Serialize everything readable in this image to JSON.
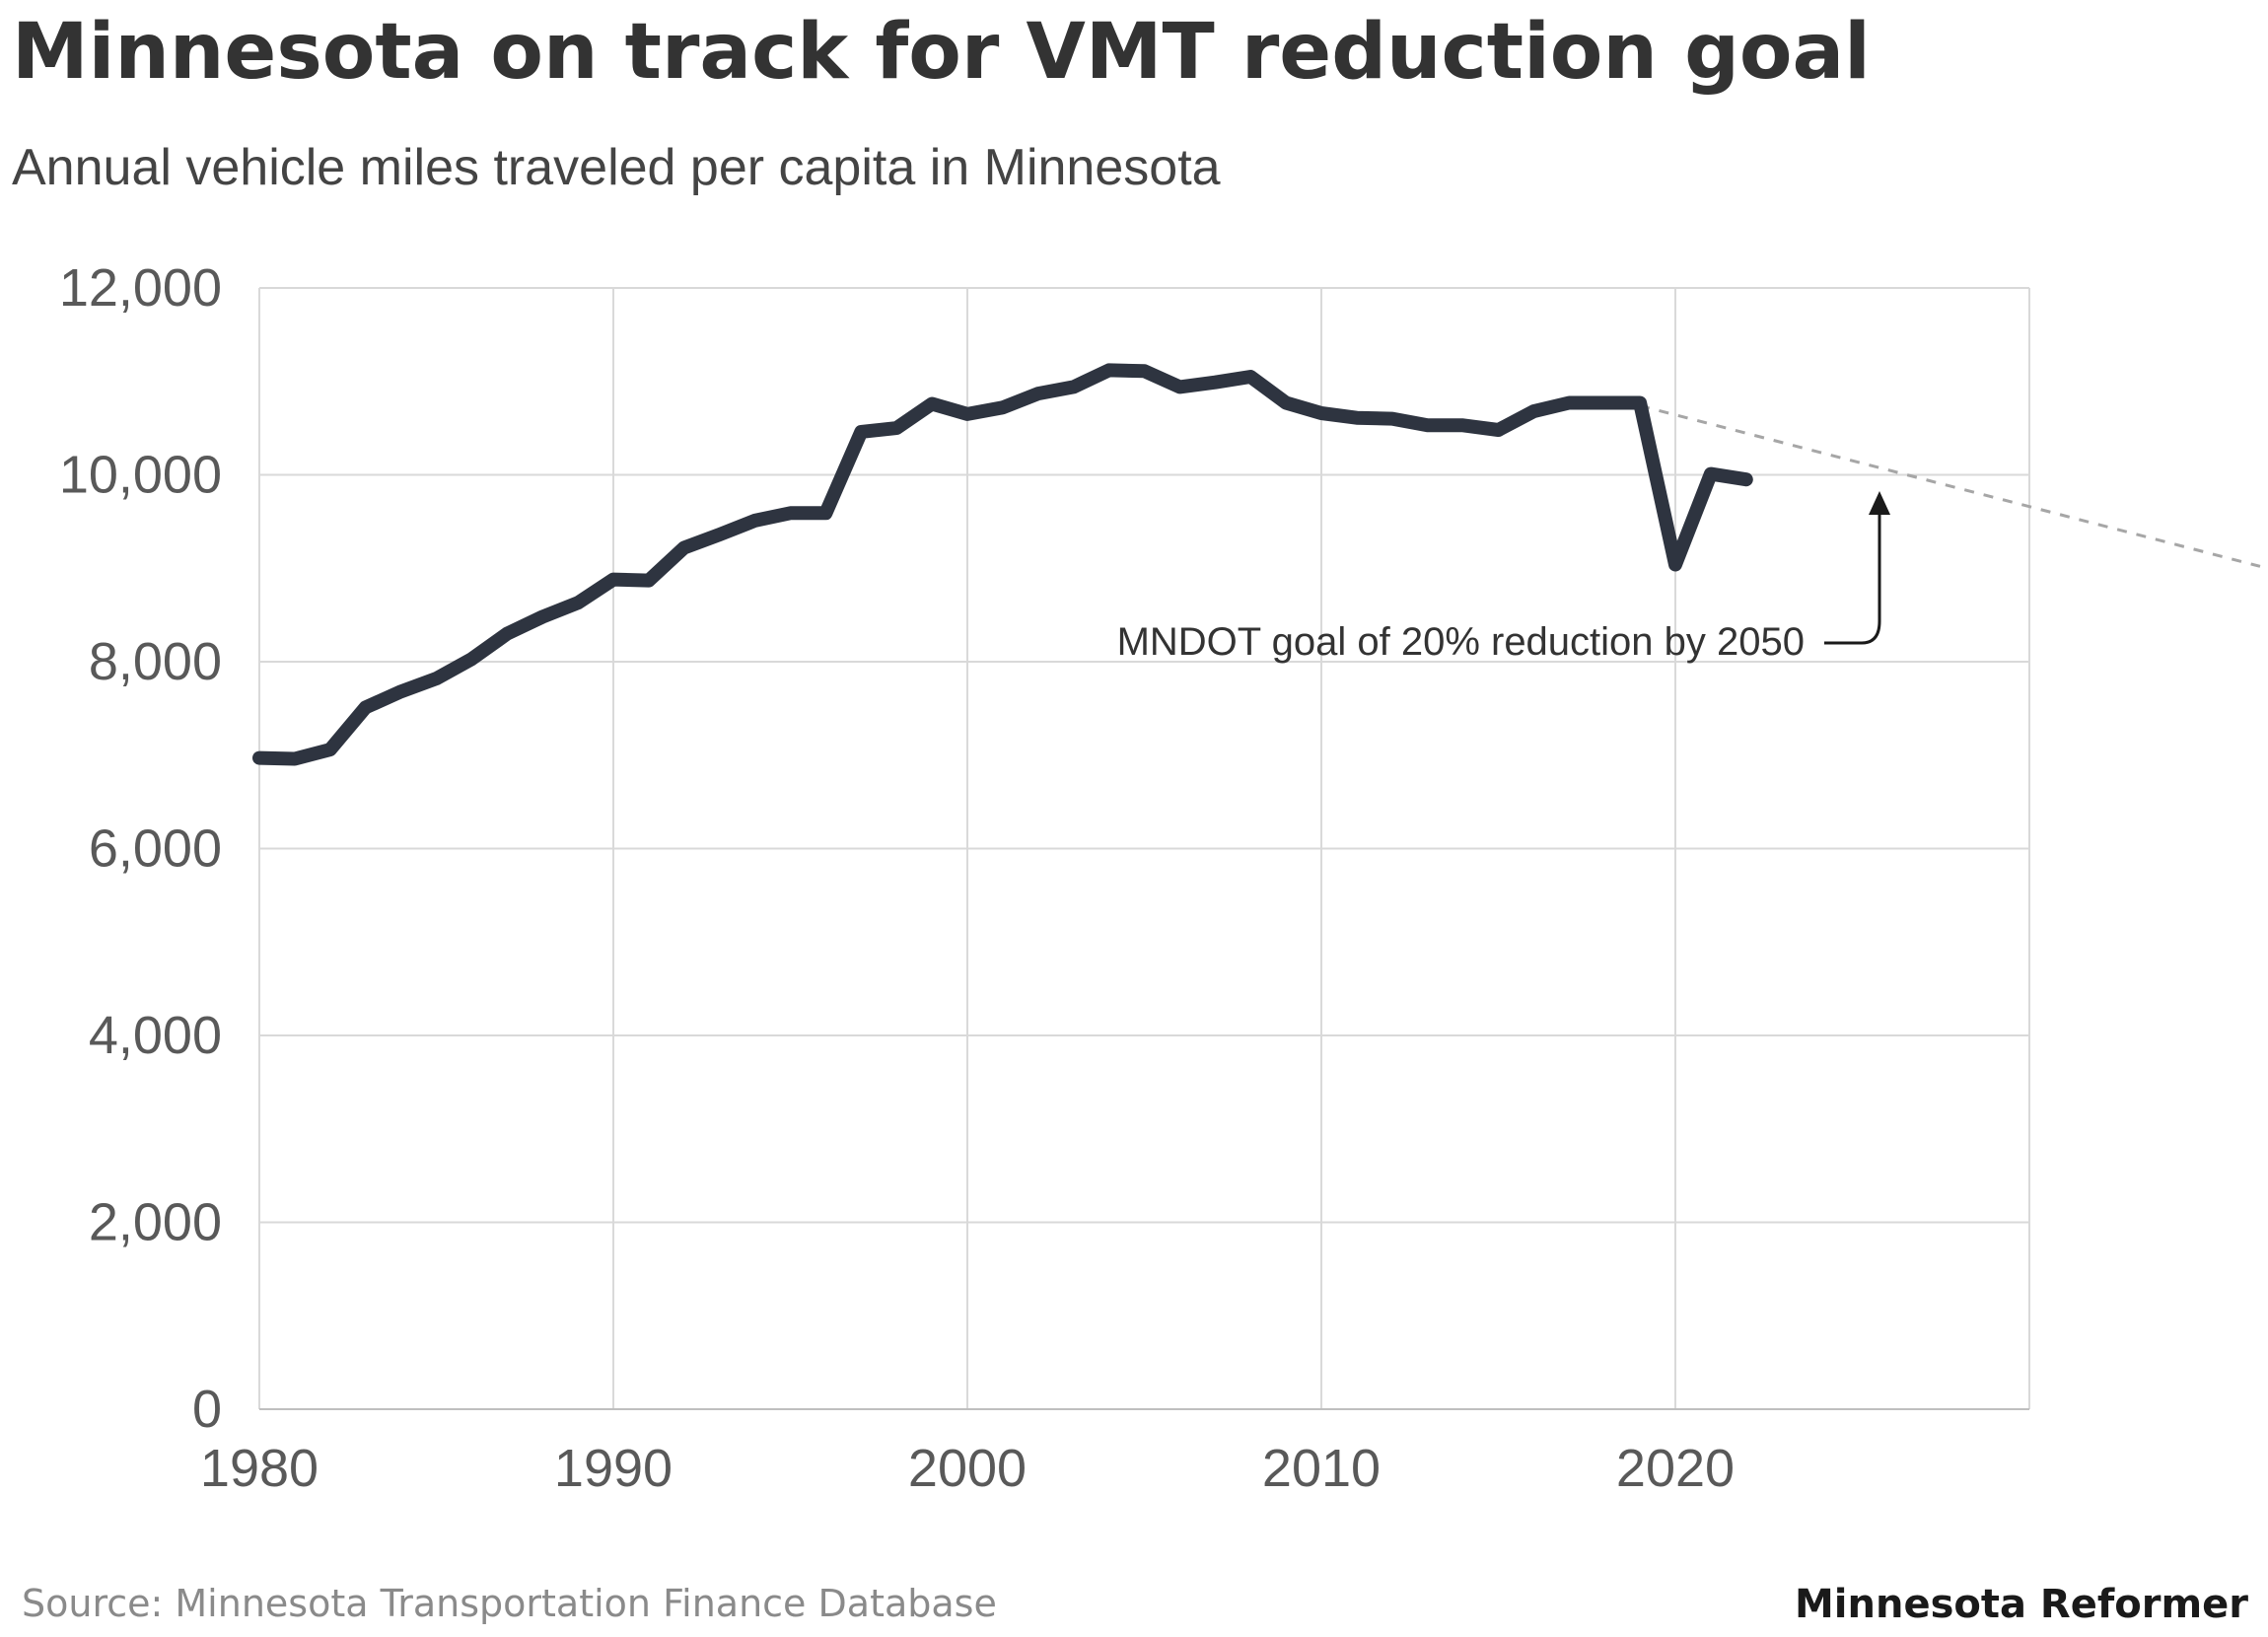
{
  "header": {
    "title": "Minnesota on track for VMT reduction goal",
    "subtitle": "Annual vehicle miles traveled per capita in Minnesota"
  },
  "footer": {
    "source": "Source: Minnesota Transportation Finance Database",
    "brand": "Minnesota Reformer"
  },
  "annotation": {
    "text": "MNDOT goal of 20% reduction by 2050"
  },
  "colors": {
    "line": "#2e3440",
    "grid": "#d9d9d9",
    "goal": "#a6a6a6",
    "tick_text": "#595959"
  },
  "chart_data": {
    "type": "line",
    "title": "Minnesota on track for VMT reduction goal",
    "subtitle": "Annual vehicle miles traveled per capita in Minnesota",
    "xlim": [
      1980,
      2030
    ],
    "ylim": [
      0,
      12000
    ],
    "x_ticks": [
      1980,
      1990,
      2000,
      2010,
      2020
    ],
    "x_tick_labels": [
      "1980",
      "1990",
      "2000",
      "2010",
      "2020"
    ],
    "y_ticks": [
      0,
      2000,
      4000,
      6000,
      8000,
      10000,
      12000
    ],
    "y_tick_labels": [
      "0",
      "2,000",
      "4,000",
      "6,000",
      "8,000",
      "10,000",
      "12,000"
    ],
    "grid": true,
    "series": [
      {
        "x": [
          1980,
          1981,
          1982,
          1983,
          1984,
          1985,
          1986,
          1987,
          1988,
          1989,
          1990,
          1991,
          1992,
          1993,
          1994,
          1995,
          1996,
          1997,
          1998,
          1999,
          2000,
          2001,
          2002,
          2003,
          2004,
          2005,
          2006,
          2007,
          2008,
          2009,
          2010,
          2011,
          2012,
          2013,
          2014,
          2015,
          2016,
          2017,
          2018,
          2019,
          2020,
          2021,
          2022
        ],
        "values": [
          6970,
          6960,
          7060,
          7510,
          7680,
          7820,
          8030,
          8300,
          8480,
          8630,
          8880,
          8870,
          9220,
          9360,
          9510,
          9590,
          9590,
          10460,
          10500,
          10760,
          10650,
          10720,
          10870,
          10940,
          11120,
          11110,
          10940,
          10990,
          11050,
          10770,
          10660,
          10610,
          10600,
          10530,
          10530,
          10480,
          10680,
          10770,
          10770,
          10770,
          9040,
          10010,
          9950
        ]
      },
      {
        "name": "MNDOT goal of 20% reduction by 2050",
        "style": "dashed",
        "x": [
          2019,
          2030
        ],
        "values": [
          10740,
          9660
        ]
      }
    ],
    "annotations": [
      {
        "text": "MNDOT goal of 20% reduction by 2050",
        "arrow_to_x": 2026,
        "arrow_to_y": 9800
      }
    ]
  }
}
